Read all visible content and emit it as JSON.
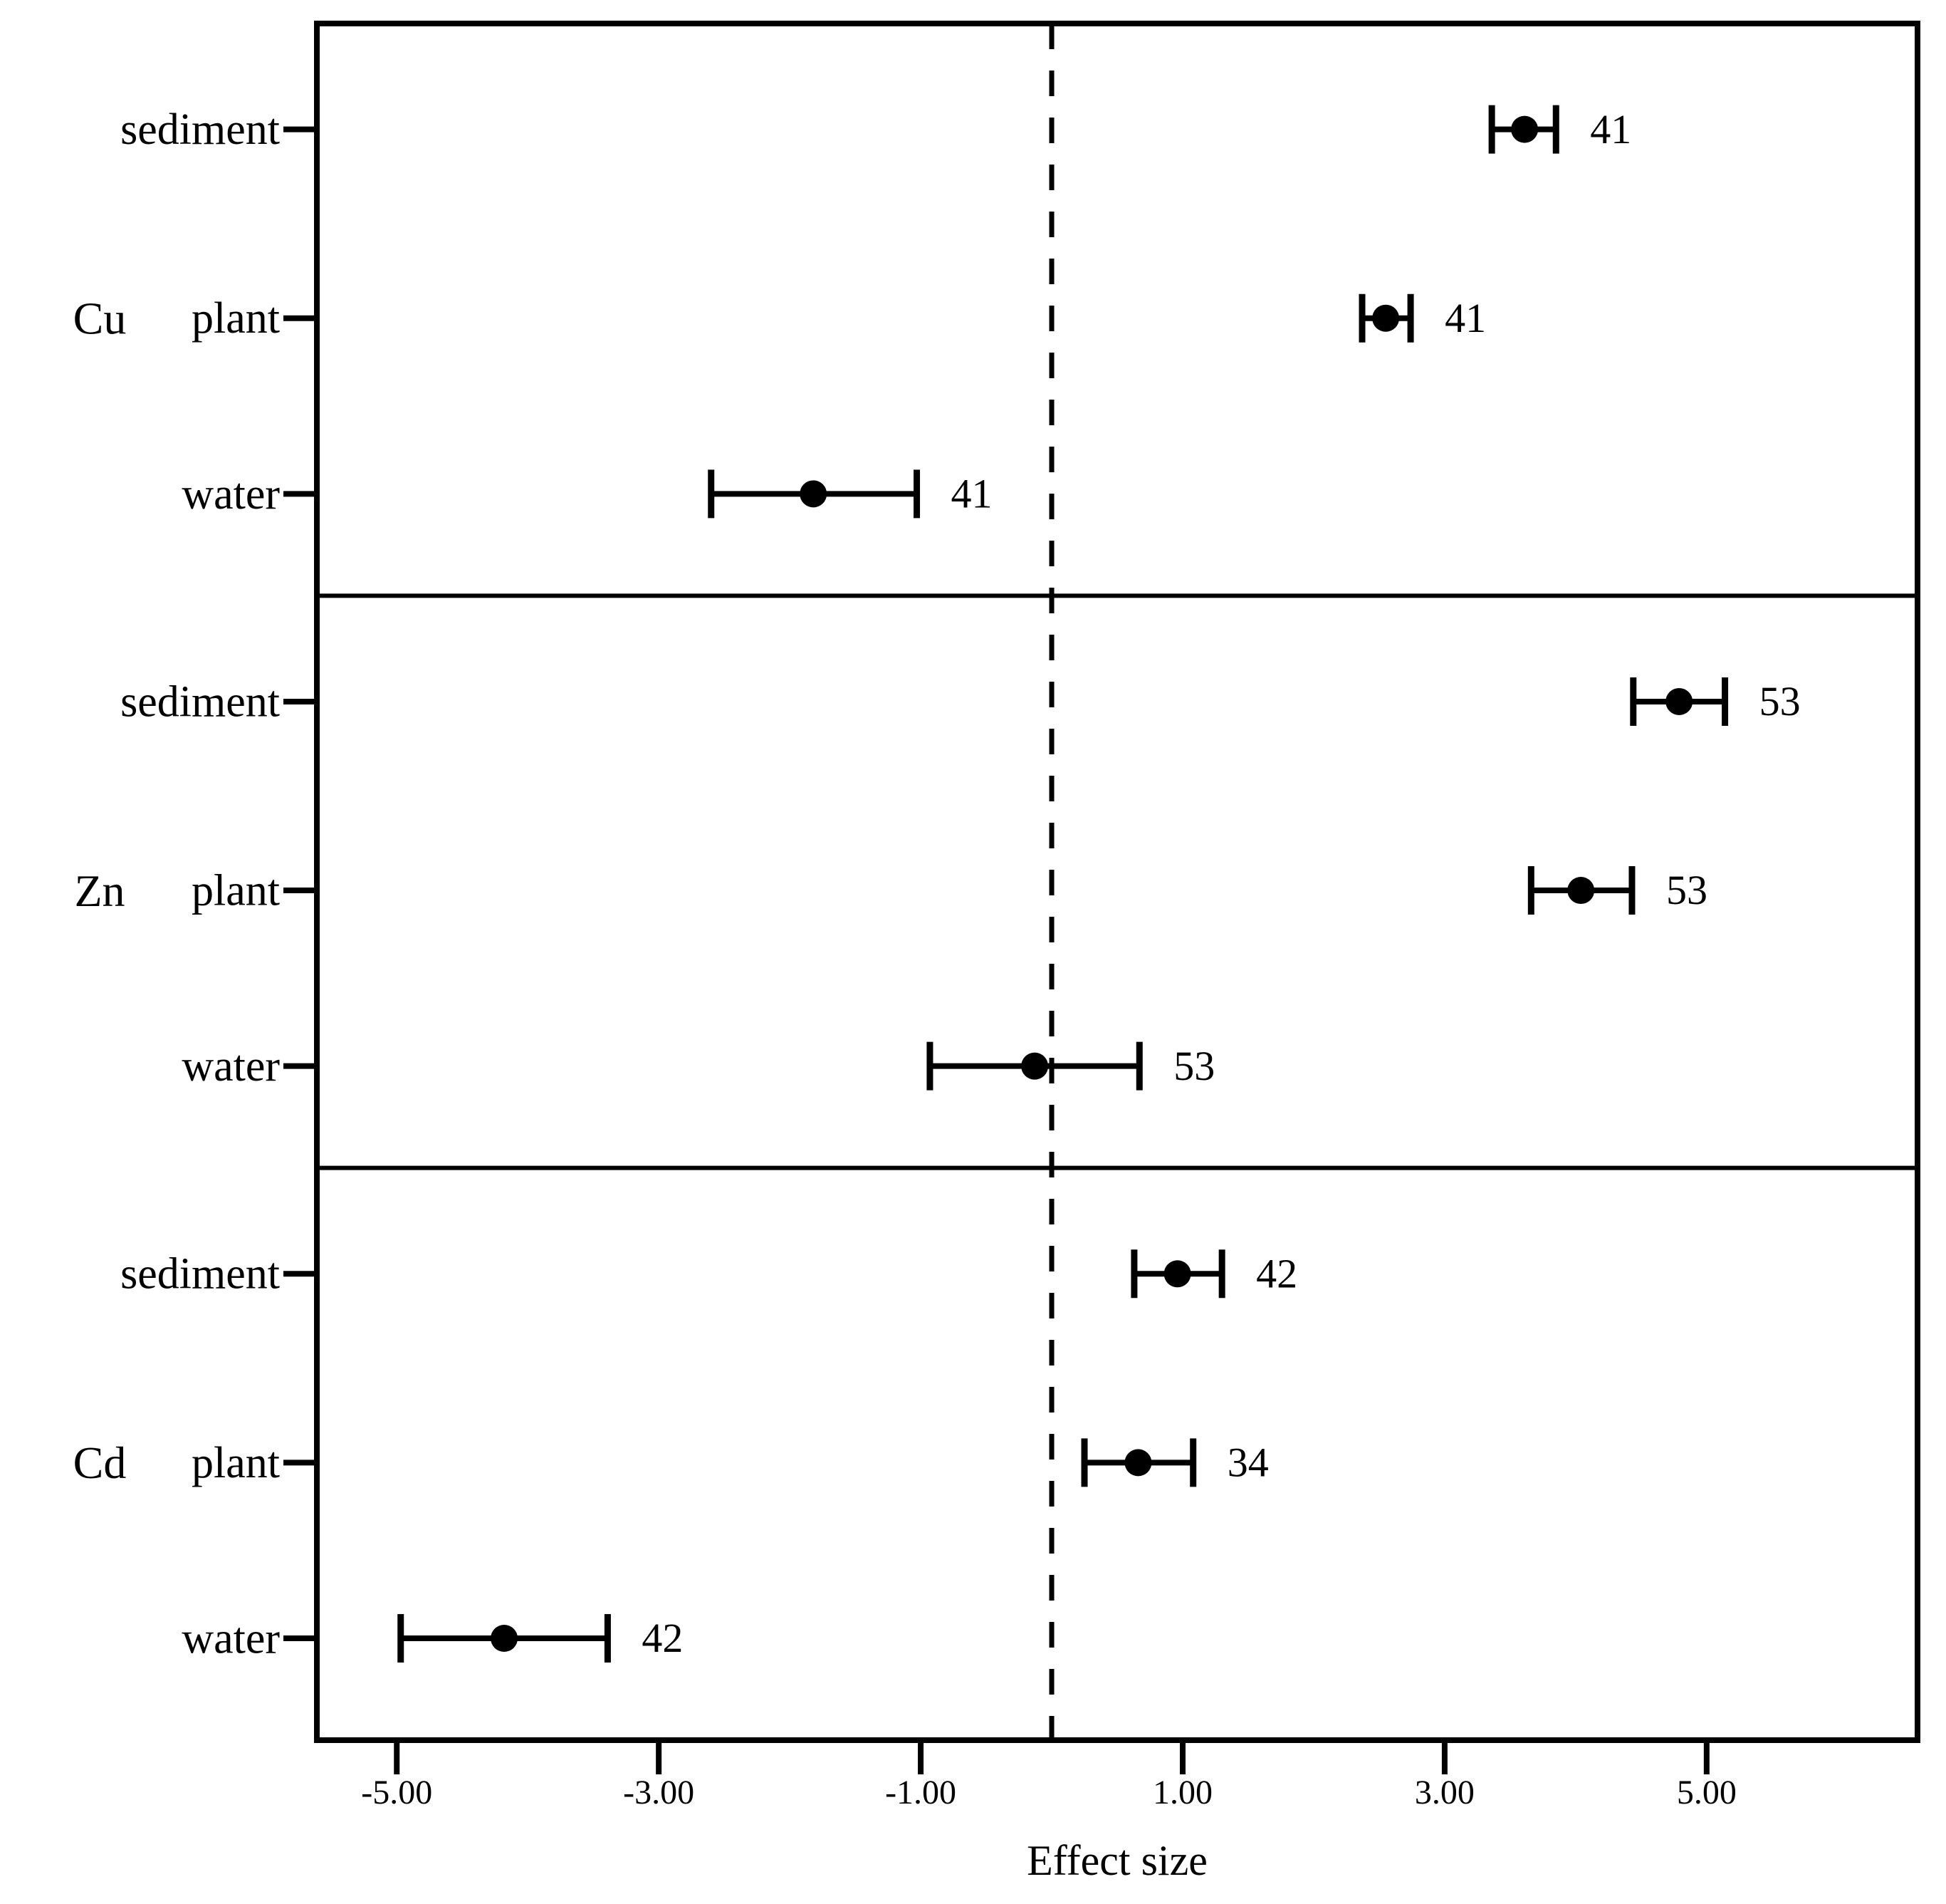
{
  "chart_data": {
    "type": "scatter",
    "subtype": "forest-dot-whisker",
    "xlabel": "Effect size",
    "xlim": [
      -5.61,
      6.61
    ],
    "x_ticks": [
      -5,
      -3,
      -1,
      1,
      3,
      5
    ],
    "x_tick_labels": [
      "-5.00",
      "-3.00",
      "-1.00",
      "1.00",
      "3.00",
      "5.00"
    ],
    "reference_line_x": 0,
    "grid": false,
    "legend": false,
    "colors": {
      "marker": "#000000",
      "line": "#000000",
      "border": "#000000",
      "background": "#ffffff"
    },
    "panels": [
      {
        "group": "Cu",
        "rows": [
          {
            "category": "sediment",
            "effect": 3.61,
            "ci_low": 3.36,
            "ci_high": 3.85,
            "n": "41"
          },
          {
            "category": "plant",
            "effect": 2.55,
            "ci_low": 2.37,
            "ci_high": 2.74,
            "n": "41"
          },
          {
            "category": "water",
            "effect": -1.82,
            "ci_low": -2.6,
            "ci_high": -1.03,
            "n": "41"
          }
        ]
      },
      {
        "group": "Zn",
        "rows": [
          {
            "category": "sediment",
            "effect": 4.79,
            "ci_low": 4.44,
            "ci_high": 5.14,
            "n": "53"
          },
          {
            "category": "plant",
            "effect": 4.04,
            "ci_low": 3.66,
            "ci_high": 4.43,
            "n": "53"
          },
          {
            "category": "water",
            "effect": -0.13,
            "ci_low": -0.93,
            "ci_high": 0.67,
            "n": "53"
          }
        ]
      },
      {
        "group": "Cd",
        "rows": [
          {
            "category": "sediment",
            "effect": 0.96,
            "ci_low": 0.63,
            "ci_high": 1.3,
            "n": "42"
          },
          {
            "category": "plant",
            "effect": 0.66,
            "ci_low": 0.25,
            "ci_high": 1.08,
            "n": "34"
          },
          {
            "category": "water",
            "effect": -4.18,
            "ci_low": -4.97,
            "ci_high": -3.39,
            "n": "42"
          }
        ]
      }
    ]
  }
}
